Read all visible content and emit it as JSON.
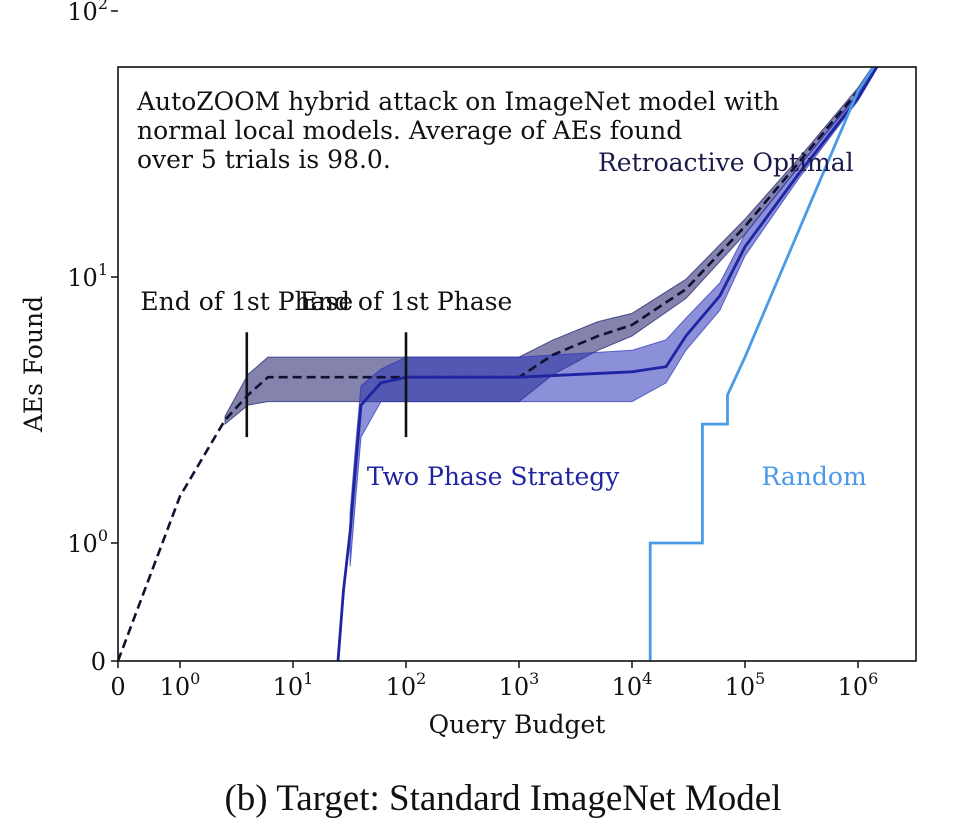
{
  "chart_data": {
    "type": "line",
    "caption": "(b) Target: Standard ImageNet Model",
    "annotation_text": [
      "AutoZOOM hybrid attack on ImageNet model with",
      "normal local models. Average of AEs found",
      "over 5 trials is 98.0."
    ],
    "xlabel": "Query Budget",
    "ylabel": "AEs Found",
    "x_scale": "symlog",
    "y_scale": "symlog",
    "xlim": [
      0,
      2900000
    ],
    "ylim": [
      0,
      100
    ],
    "x_ticks": [
      {
        "value": 0,
        "base": "0",
        "exp": ""
      },
      {
        "value": 1,
        "base": "10",
        "exp": "0"
      },
      {
        "value": 10,
        "base": "10",
        "exp": "1"
      },
      {
        "value": 100,
        "base": "10",
        "exp": "2"
      },
      {
        "value": 1000,
        "base": "10",
        "exp": "3"
      },
      {
        "value": 10000,
        "base": "10",
        "exp": "4"
      },
      {
        "value": 100000,
        "base": "10",
        "exp": "5"
      },
      {
        "value": 1000000,
        "base": "10",
        "exp": "6"
      }
    ],
    "y_ticks": [
      {
        "value": 0,
        "base": "0",
        "exp": ""
      },
      {
        "value": 1,
        "base": "10",
        "exp": "0"
      },
      {
        "value": 10,
        "base": "10",
        "exp": "1"
      },
      {
        "value": 100,
        "base": "10",
        "exp": "2"
      }
    ],
    "phase_markers": [
      {
        "x": 3.9,
        "y_from": 2.5,
        "y_to": 6.2,
        "label": "End of 1st Phase"
      },
      {
        "x": 100,
        "y_from": 2.5,
        "y_to": 6.2,
        "label": "End of 1st Phase"
      }
    ],
    "series": [
      {
        "name": "Retroactive Optimal",
        "style": "dashed",
        "color": "#101030",
        "x": [
          0,
          1,
          2.5,
          4,
          6,
          20,
          100,
          1000,
          2000,
          5000,
          10000,
          30000,
          100000,
          300000,
          1000000,
          2900000
        ],
        "y": [
          0,
          1.5,
          2.9,
          3.6,
          4.2,
          4.2,
          4.2,
          4.2,
          5.1,
          6.0,
          6.6,
          9.0,
          15.5,
          27.0,
          50.0,
          100.0
        ]
      },
      {
        "name": "",
        "style": "band",
        "color": "#1d1d6b",
        "opacity": 0.55,
        "x": [
          2.5,
          4,
          6,
          20,
          100,
          1000,
          2000,
          5000,
          10000,
          30000,
          100000,
          300000,
          1000000,
          2900000
        ],
        "y_low": [
          2.8,
          3.3,
          3.4,
          3.4,
          3.4,
          3.4,
          4.3,
          5.3,
          6.0,
          8.3,
          14.5,
          26.0,
          48.5,
          99.0
        ],
        "y_high": [
          3.0,
          4.3,
          5.0,
          5.0,
          5.0,
          5.0,
          5.8,
          6.8,
          7.3,
          9.8,
          16.5,
          28.0,
          51.5,
          100.0
        ]
      },
      {
        "name": "Two Phase Strategy",
        "style": "solid",
        "color": "#1f24a0",
        "x": [
          25,
          28,
          32,
          36,
          40,
          60,
          100,
          1000,
          10000,
          20000,
          30000,
          60000,
          100000,
          300000,
          1000000,
          2900000
        ],
        "y": [
          0,
          0.6,
          1.1,
          2.0,
          3.3,
          4.0,
          4.2,
          4.2,
          4.4,
          4.6,
          6.0,
          8.5,
          13.0,
          24.5,
          47.0,
          100.0
        ]
      },
      {
        "name": "",
        "style": "band",
        "color": "#2b34b8",
        "opacity": 0.55,
        "x": [
          32,
          36,
          40,
          60,
          100,
          1000,
          10000,
          20000,
          30000,
          60000,
          100000,
          300000,
          1000000,
          2900000
        ],
        "y_low": [
          0.8,
          1.5,
          2.5,
          3.4,
          3.4,
          3.4,
          3.4,
          4.0,
          5.3,
          7.5,
          12.0,
          23.5,
          46.0,
          99.0
        ],
        "y_high": [
          1.3,
          2.4,
          3.9,
          4.5,
          5.0,
          5.0,
          5.3,
          5.8,
          7.0,
          9.5,
          14.5,
          26.0,
          49.0,
          100.0
        ]
      },
      {
        "name": "Random",
        "style": "solid",
        "color": "#4a9ae8",
        "x": [
          14500,
          14500,
          42000,
          42000,
          70000,
          70000,
          100000,
          200000,
          500000,
          1000000,
          2900000
        ],
        "y": [
          0,
          1.0,
          1.0,
          2.8,
          2.8,
          3.6,
          5.0,
          10.0,
          25.0,
          50.0,
          100.0
        ]
      }
    ],
    "series_labels": [
      {
        "text": "Retroactive Optimal",
        "color": "#1b1b4a",
        "x": 5000,
        "y": 25
      },
      {
        "text": "Two Phase Strategy",
        "color": "#1f24a0",
        "x": 45,
        "y": 1.65
      },
      {
        "text": "Random",
        "color": "#4a9ae8",
        "x": 140000,
        "y": 1.65
      }
    ]
  }
}
